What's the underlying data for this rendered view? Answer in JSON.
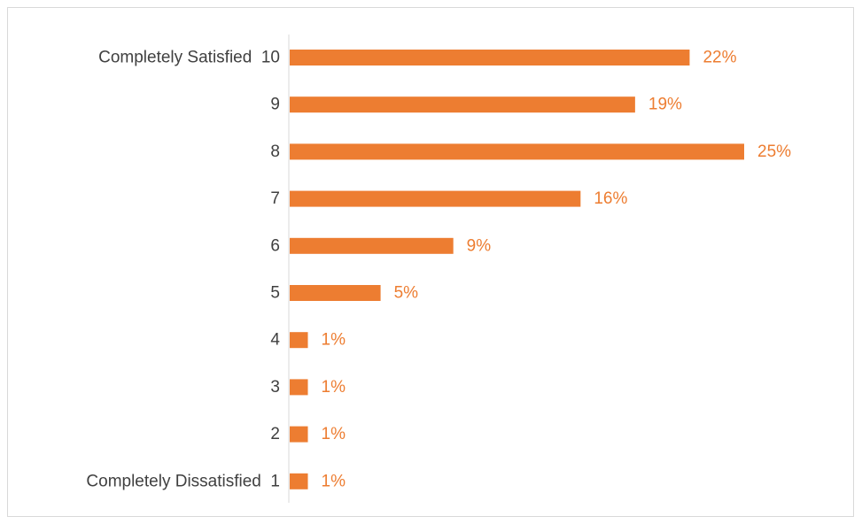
{
  "chart_data": {
    "type": "bar",
    "orientation": "horizontal",
    "categories": [
      "Completely Satisfied  10",
      "9",
      "8",
      "7",
      "6",
      "5",
      "4",
      "3",
      "2",
      "Completely Dissatisfied  1"
    ],
    "values": [
      22,
      19,
      25,
      16,
      9,
      5,
      1,
      1,
      1,
      1
    ],
    "value_labels": [
      "22%",
      "19%",
      "25%",
      "16%",
      "9%",
      "5%",
      "1%",
      "1%",
      "1%",
      "1%"
    ],
    "value_unit": "%",
    "xlim": [
      0,
      25
    ],
    "grid": false,
    "legend": "none",
    "bar_color": "#ED7D31",
    "label_color": "#ED7D31",
    "category_label_color": "#404040",
    "axis_color": "#d9d9d9"
  }
}
